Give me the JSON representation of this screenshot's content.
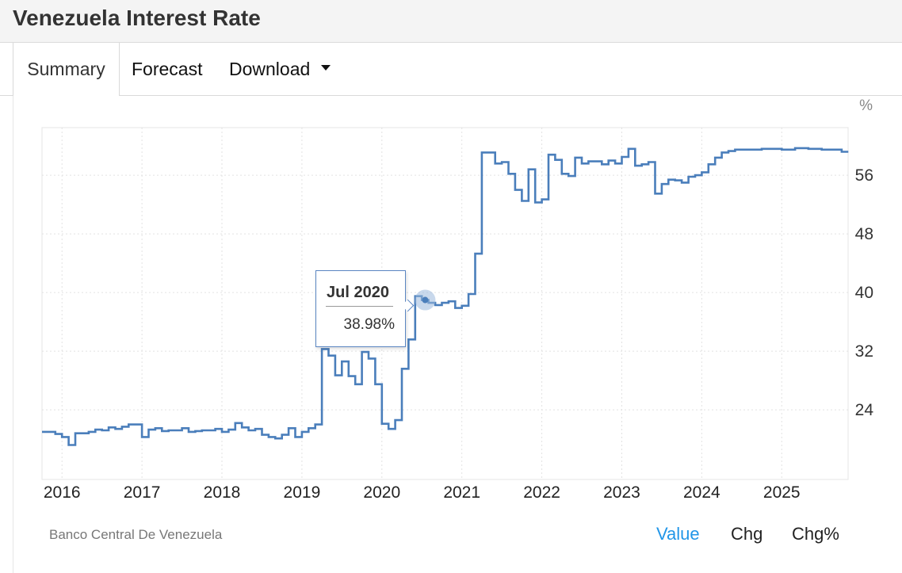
{
  "header": {
    "title": "Venezuela Interest Rate"
  },
  "tabs": {
    "summary": "Summary",
    "forecast": "Forecast",
    "download": "Download"
  },
  "footer": {
    "source": "Banco Central De Venezuela",
    "value": "Value",
    "chg": "Chg",
    "chg_pct": "Chg%"
  },
  "tooltip": {
    "date": "Jul 2020",
    "value": "38.98%"
  },
  "colors": {
    "line": "#4a7ebb",
    "active_toggle": "#2196e8"
  },
  "chart_data": {
    "type": "line",
    "unit": "%",
    "ylim": [
      14.5,
      62.5
    ],
    "yticks": [
      24,
      32,
      40,
      48,
      56
    ],
    "xlim": [
      2015.75,
      2025.83
    ],
    "xticks": [
      2016,
      2017,
      2018,
      2019,
      2020,
      2021,
      2022,
      2023,
      2024,
      2025
    ],
    "grid": true,
    "step": true,
    "series": [
      {
        "points": [
          [
            "2015-10",
            21.0
          ],
          [
            "2015-11",
            21.0
          ],
          [
            "2015-12",
            20.7
          ],
          [
            "2016-01",
            20.3
          ],
          [
            "2016-02",
            19.2
          ],
          [
            "2016-03",
            20.8
          ],
          [
            "2016-04",
            20.8
          ],
          [
            "2016-05",
            21.0
          ],
          [
            "2016-06",
            21.3
          ],
          [
            "2016-07",
            21.2
          ],
          [
            "2016-08",
            21.6
          ],
          [
            "2016-09",
            21.4
          ],
          [
            "2016-10",
            21.7
          ],
          [
            "2016-11",
            22.0
          ],
          [
            "2016-12",
            22.0
          ],
          [
            "2017-01",
            20.3
          ],
          [
            "2017-02",
            21.3
          ],
          [
            "2017-03",
            21.5
          ],
          [
            "2017-04",
            21.1
          ],
          [
            "2017-05",
            21.2
          ],
          [
            "2017-06",
            21.2
          ],
          [
            "2017-07",
            21.5
          ],
          [
            "2017-08",
            21.0
          ],
          [
            "2017-09",
            21.1
          ],
          [
            "2017-10",
            21.2
          ],
          [
            "2017-11",
            21.2
          ],
          [
            "2017-12",
            21.4
          ],
          [
            "2018-01",
            21.0
          ],
          [
            "2018-02",
            21.3
          ],
          [
            "2018-03",
            22.2
          ],
          [
            "2018-04",
            21.6
          ],
          [
            "2018-05",
            21.2
          ],
          [
            "2018-06",
            21.4
          ],
          [
            "2018-07",
            20.6
          ],
          [
            "2018-08",
            20.3
          ],
          [
            "2018-09",
            20.1
          ],
          [
            "2018-10",
            20.6
          ],
          [
            "2018-11",
            21.5
          ],
          [
            "2018-12",
            20.3
          ],
          [
            "2019-01",
            21.0
          ],
          [
            "2019-02",
            21.5
          ],
          [
            "2019-03",
            22.0
          ],
          [
            "2019-04",
            32.3
          ],
          [
            "2019-05",
            31.4
          ],
          [
            "2019-06",
            28.7
          ],
          [
            "2019-07",
            30.6
          ],
          [
            "2019-08",
            28.6
          ],
          [
            "2019-09",
            27.5
          ],
          [
            "2019-10",
            31.9
          ],
          [
            "2019-11",
            31.0
          ],
          [
            "2019-12",
            27.5
          ],
          [
            "2020-01",
            22.1
          ],
          [
            "2020-02",
            21.4
          ],
          [
            "2020-03",
            22.6
          ],
          [
            "2020-04",
            29.6
          ],
          [
            "2020-05",
            33.6
          ],
          [
            "2020-06",
            39.5
          ],
          [
            "2020-07",
            38.98
          ],
          [
            "2020-08",
            38.6
          ],
          [
            "2020-09",
            38.3
          ],
          [
            "2020-10",
            38.6
          ],
          [
            "2020-11",
            38.8
          ],
          [
            "2020-12",
            37.9
          ],
          [
            "2021-01",
            38.2
          ],
          [
            "2021-02",
            39.8
          ],
          [
            "2021-03",
            45.3
          ],
          [
            "2021-04",
            59.1
          ],
          [
            "2021-05",
            59.1
          ],
          [
            "2021-06",
            57.6
          ],
          [
            "2021-07",
            57.8
          ],
          [
            "2021-08",
            56.2
          ],
          [
            "2021-09",
            54.0
          ],
          [
            "2021-10",
            52.5
          ],
          [
            "2021-11",
            56.8
          ],
          [
            "2021-12",
            52.3
          ],
          [
            "2022-01",
            52.7
          ],
          [
            "2022-02",
            58.8
          ],
          [
            "2022-03",
            58.1
          ],
          [
            "2022-04",
            56.2
          ],
          [
            "2022-05",
            55.9
          ],
          [
            "2022-06",
            58.4
          ],
          [
            "2022-07",
            57.6
          ],
          [
            "2022-08",
            57.9
          ],
          [
            "2022-09",
            57.9
          ],
          [
            "2022-10",
            57.5
          ],
          [
            "2022-11",
            58.0
          ],
          [
            "2022-12",
            57.6
          ],
          [
            "2023-01",
            58.5
          ],
          [
            "2023-02",
            59.6
          ],
          [
            "2023-03",
            57.3
          ],
          [
            "2023-04",
            57.5
          ],
          [
            "2023-05",
            57.8
          ],
          [
            "2023-06",
            53.5
          ],
          [
            "2023-07",
            54.8
          ],
          [
            "2023-08",
            55.4
          ],
          [
            "2023-09",
            55.3
          ],
          [
            "2023-10",
            55.0
          ],
          [
            "2023-11",
            55.8
          ],
          [
            "2023-12",
            56.0
          ],
          [
            "2024-01",
            56.4
          ],
          [
            "2024-02",
            57.5
          ],
          [
            "2024-03",
            58.4
          ],
          [
            "2024-04",
            59.1
          ],
          [
            "2024-05",
            59.3
          ],
          [
            "2024-06",
            59.5
          ],
          [
            "2024-07",
            59.5
          ],
          [
            "2024-08",
            59.5
          ],
          [
            "2024-09",
            59.5
          ],
          [
            "2024-10",
            59.6
          ],
          [
            "2024-11",
            59.6
          ],
          [
            "2024-12",
            59.6
          ],
          [
            "2025-01",
            59.5
          ],
          [
            "2025-02",
            59.5
          ],
          [
            "2025-03",
            59.7
          ],
          [
            "2025-04",
            59.7
          ],
          [
            "2025-05",
            59.6
          ],
          [
            "2025-06",
            59.6
          ],
          [
            "2025-07",
            59.5
          ],
          [
            "2025-08",
            59.5
          ],
          [
            "2025-09",
            59.5
          ],
          [
            "2025-10",
            59.2
          ]
        ]
      }
    ],
    "highlight": {
      "x": "2020-07",
      "y": 38.98
    }
  }
}
